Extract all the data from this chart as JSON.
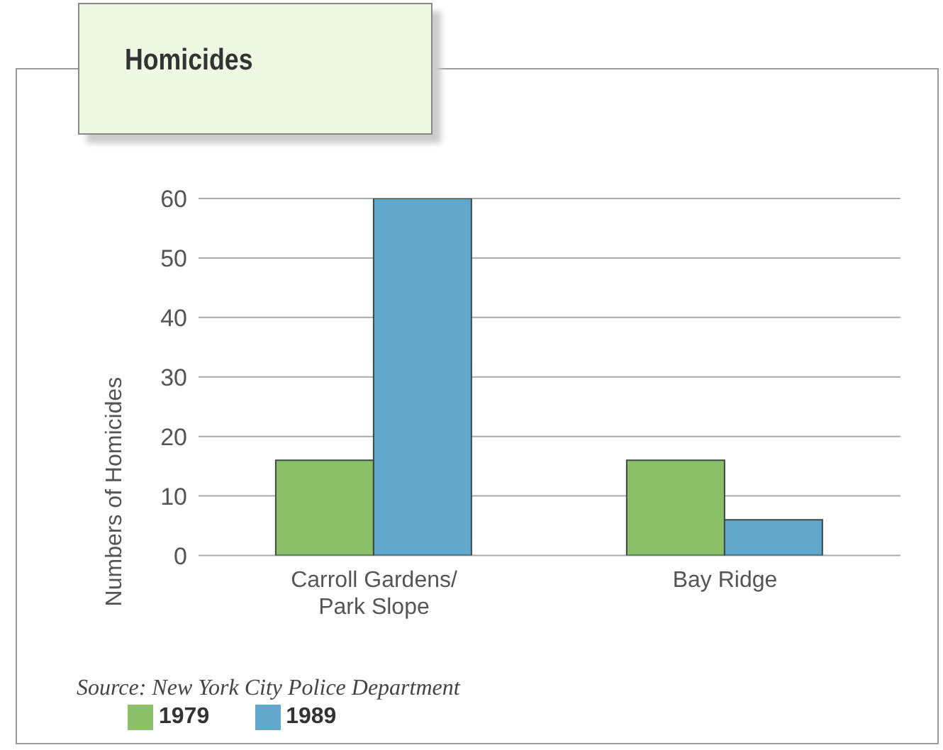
{
  "chart_data": {
    "type": "bar",
    "title": "Homicides",
    "ylabel": "Numbers of Homicides",
    "categories": [
      "Carroll Gardens/ Park Slope",
      "Bay Ridge"
    ],
    "series": [
      {
        "name": "1979",
        "color": "#8cc068",
        "values": [
          16,
          16
        ]
      },
      {
        "name": "1989",
        "color": "#62a8cc",
        "values": [
          60,
          6
        ]
      }
    ],
    "ylim": [
      0,
      60
    ],
    "yticks": [
      0,
      10,
      20,
      30,
      40,
      50,
      60
    ],
    "grid": "y",
    "legend": "bottom left",
    "annotations": [
      "Source: New York City Police Department"
    ]
  }
}
